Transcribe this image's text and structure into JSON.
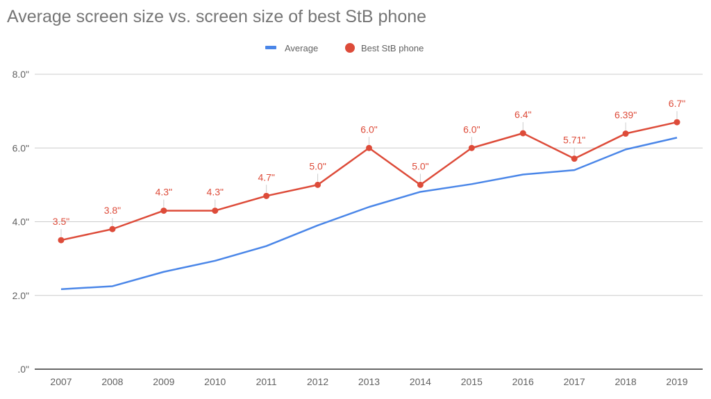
{
  "chart_data": {
    "type": "line",
    "title": "Average screen size vs. screen size of best StB phone",
    "xlabel": "",
    "ylabel": "",
    "categories": [
      "2007",
      "2008",
      "2009",
      "2010",
      "2011",
      "2012",
      "2013",
      "2014",
      "2015",
      "2016",
      "2017",
      "2018",
      "2019"
    ],
    "ylim": [
      0,
      8
    ],
    "yticks": [
      0,
      2,
      4,
      6,
      8
    ],
    "ytick_labels": [
      ".0\"",
      "2.0\"",
      "4.0\"",
      "6.0\"",
      "8.0\""
    ],
    "grid": true,
    "legend_position": "top-center",
    "series": [
      {
        "name": "Average",
        "color": "#4a86e8",
        "marker": "none",
        "values": [
          2.17,
          2.25,
          2.64,
          2.94,
          3.34,
          3.9,
          4.4,
          4.81,
          5.02,
          5.28,
          5.4,
          5.96,
          6.28
        ]
      },
      {
        "name": "Best StB phone",
        "color": "#dd4b39",
        "marker": "circle",
        "values": [
          3.5,
          3.8,
          4.3,
          4.3,
          4.7,
          5.0,
          6.0,
          5.0,
          6.0,
          6.4,
          5.71,
          6.39,
          6.7
        ],
        "data_labels": [
          "3.5\"",
          "3.8\"",
          "4.3\"",
          "4.3\"",
          "4.7\"",
          "5.0\"",
          "6.0\"",
          "5.0\"",
          "6.0\"",
          "6.4\"",
          "5.71\"",
          "6.39\"",
          "6.7\""
        ]
      }
    ]
  }
}
